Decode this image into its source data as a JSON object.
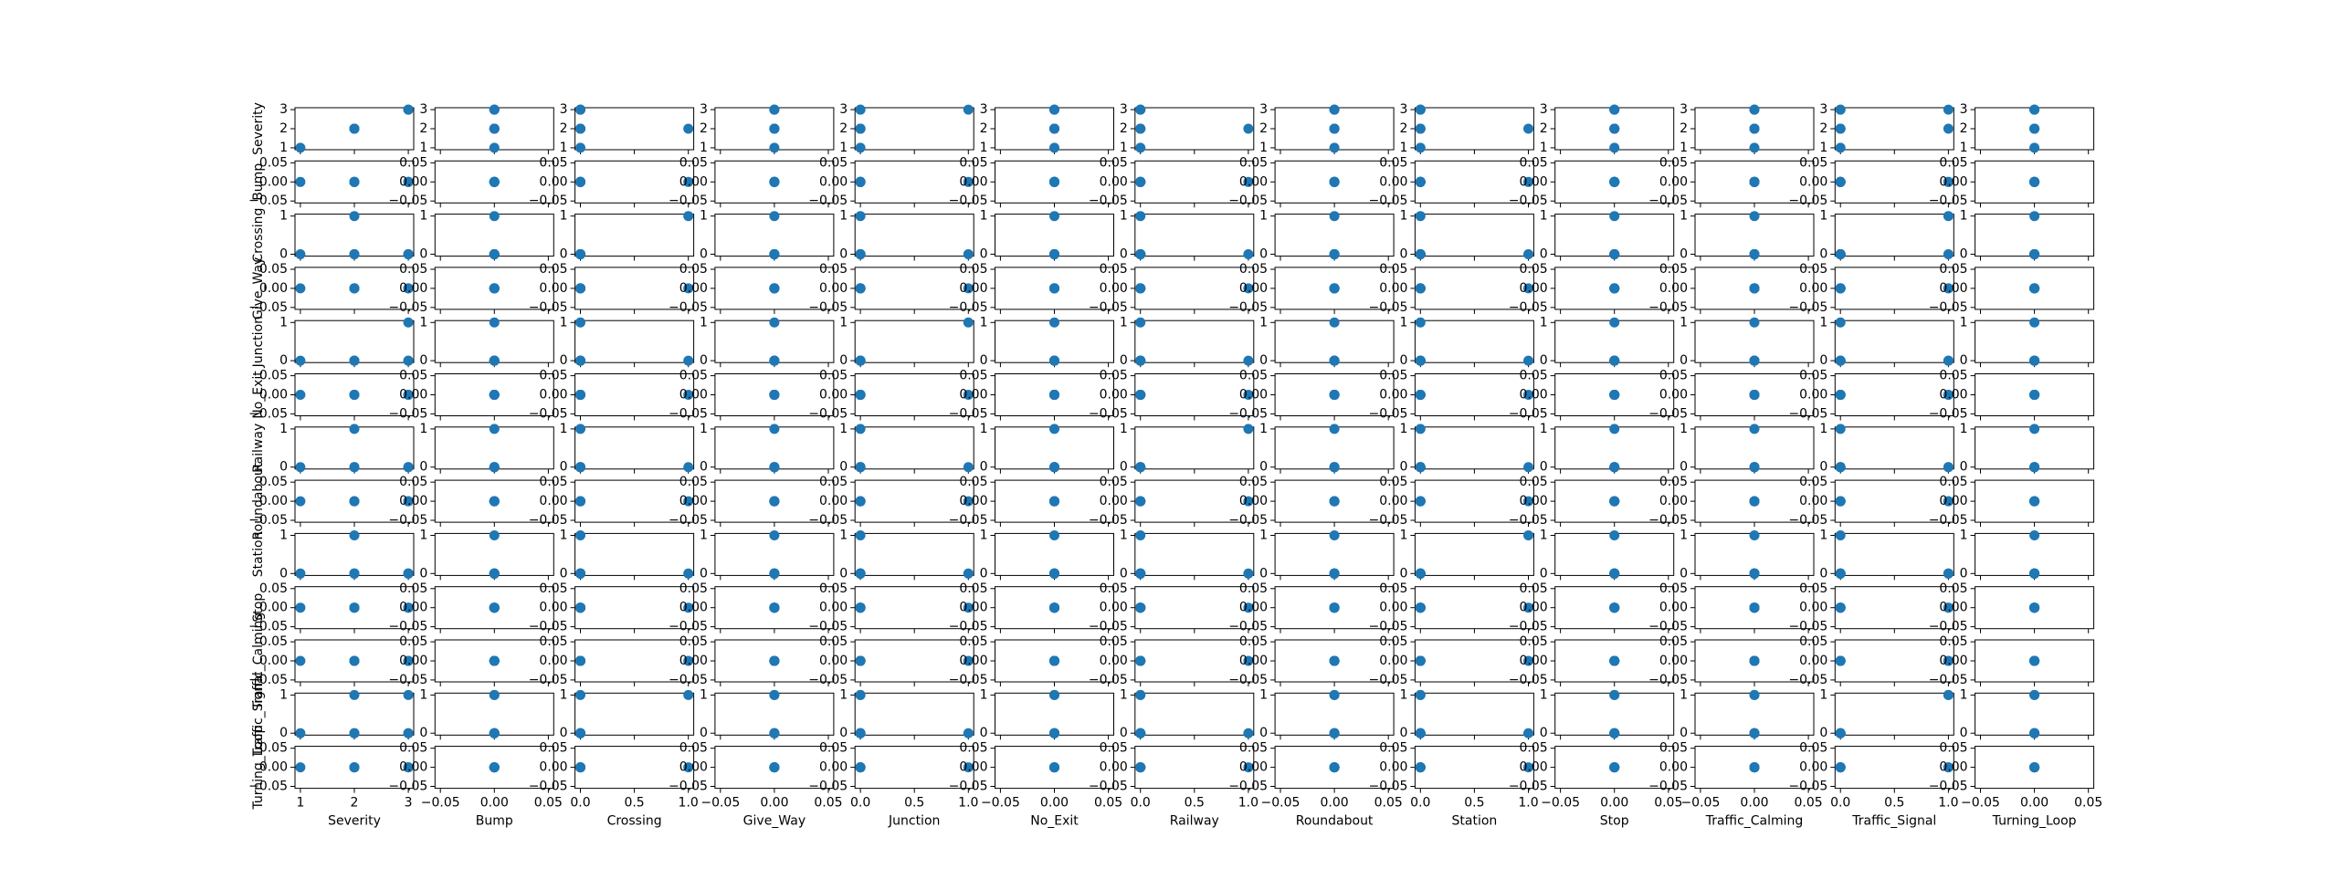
{
  "chart_data": {
    "type": "scatter_matrix",
    "color": "#1f77b4",
    "variables": [
      {
        "name": "Severity",
        "values": [
          1,
          2,
          3,
          2,
          3,
          2,
          2,
          3
        ],
        "lim": [
          0.9,
          3.1
        ],
        "yticks": [
          1,
          2,
          3
        ],
        "xticks": [
          1,
          2,
          3
        ]
      },
      {
        "name": "Bump",
        "values": [
          0,
          0,
          0,
          0,
          0,
          0,
          0,
          0
        ],
        "lim": [
          -0.055,
          0.055
        ],
        "yticks": [
          {
            "value": -0.05,
            "label": "−0.05"
          },
          {
            "value": 0,
            "label": "0.00"
          },
          {
            "value": 0.05,
            "label": "0.05"
          }
        ],
        "xticks": [
          {
            "value": -0.05,
            "label": "−0.05"
          },
          {
            "value": 0,
            "label": "0.00"
          },
          {
            "value": 0.05,
            "label": "0.05"
          }
        ]
      },
      {
        "name": "Crossing",
        "values": [
          0,
          0,
          0,
          1,
          0,
          0,
          0,
          0
        ],
        "lim": [
          -0.05,
          1.05
        ],
        "yticks": [
          0,
          1
        ],
        "xticks": [
          {
            "value": 0,
            "label": "0.0"
          },
          {
            "value": 0.5,
            "label": "0.5"
          },
          {
            "value": 1,
            "label": "1.0"
          }
        ]
      },
      {
        "name": "Give_Way",
        "values": [
          0,
          0,
          0,
          0,
          0,
          0,
          0,
          0
        ],
        "lim": [
          -0.055,
          0.055
        ],
        "yticks": [
          {
            "value": -0.05,
            "label": "−0.05"
          },
          {
            "value": 0,
            "label": "0.00"
          },
          {
            "value": 0.05,
            "label": "0.05"
          }
        ],
        "xticks": [
          {
            "value": -0.05,
            "label": "−0.05"
          },
          {
            "value": 0,
            "label": "0.00"
          },
          {
            "value": 0.05,
            "label": "0.05"
          }
        ]
      },
      {
        "name": "Junction",
        "values": [
          0,
          0,
          0,
          0,
          1,
          0,
          0,
          0
        ],
        "lim": [
          -0.05,
          1.05
        ],
        "yticks": [
          0,
          1
        ],
        "xticks": [
          {
            "value": 0,
            "label": "0.0"
          },
          {
            "value": 0.5,
            "label": "0.5"
          },
          {
            "value": 1,
            "label": "1.0"
          }
        ]
      },
      {
        "name": "No_Exit",
        "values": [
          0,
          0,
          0,
          0,
          0,
          0,
          0,
          0
        ],
        "lim": [
          -0.055,
          0.055
        ],
        "yticks": [
          {
            "value": -0.05,
            "label": "−0.05"
          },
          {
            "value": 0,
            "label": "0.00"
          },
          {
            "value": 0.05,
            "label": "0.05"
          }
        ],
        "xticks": [
          {
            "value": -0.05,
            "label": "−0.05"
          },
          {
            "value": 0,
            "label": "0.00"
          },
          {
            "value": 0.05,
            "label": "0.05"
          }
        ]
      },
      {
        "name": "Railway",
        "values": [
          0,
          0,
          0,
          0,
          0,
          1,
          0,
          0
        ],
        "lim": [
          -0.05,
          1.05
        ],
        "yticks": [
          0,
          1
        ],
        "xticks": [
          {
            "value": 0,
            "label": "0.0"
          },
          {
            "value": 0.5,
            "label": "0.5"
          },
          {
            "value": 1,
            "label": "1.0"
          }
        ]
      },
      {
        "name": "Roundabout",
        "values": [
          0,
          0,
          0,
          0,
          0,
          0,
          0,
          0
        ],
        "lim": [
          -0.055,
          0.055
        ],
        "yticks": [
          {
            "value": -0.05,
            "label": "−0.05"
          },
          {
            "value": 0,
            "label": "0.00"
          },
          {
            "value": 0.05,
            "label": "0.05"
          }
        ],
        "xticks": [
          {
            "value": -0.05,
            "label": "−0.05"
          },
          {
            "value": 0,
            "label": "0.00"
          },
          {
            "value": 0.05,
            "label": "0.05"
          }
        ]
      },
      {
        "name": "Station",
        "values": [
          0,
          0,
          0,
          0,
          0,
          0,
          1,
          0
        ],
        "lim": [
          -0.05,
          1.05
        ],
        "yticks": [
          0,
          1
        ],
        "xticks": [
          {
            "value": 0,
            "label": "0.0"
          },
          {
            "value": 0.5,
            "label": "0.5"
          },
          {
            "value": 1,
            "label": "1.0"
          }
        ]
      },
      {
        "name": "Stop",
        "values": [
          0,
          0,
          0,
          0,
          0,
          0,
          0,
          0
        ],
        "lim": [
          -0.055,
          0.055
        ],
        "yticks": [
          {
            "value": -0.05,
            "label": "−0.05"
          },
          {
            "value": 0,
            "label": "0.00"
          },
          {
            "value": 0.05,
            "label": "0.05"
          }
        ],
        "xticks": [
          {
            "value": -0.05,
            "label": "−0.05"
          },
          {
            "value": 0,
            "label": "0.00"
          },
          {
            "value": 0.05,
            "label": "0.05"
          }
        ]
      },
      {
        "name": "Traffic_Calming",
        "values": [
          0,
          0,
          0,
          0,
          0,
          0,
          0,
          0
        ],
        "lim": [
          -0.055,
          0.055
        ],
        "yticks": [
          {
            "value": -0.05,
            "label": "−0.05"
          },
          {
            "value": 0,
            "label": "0.00"
          },
          {
            "value": 0.05,
            "label": "0.05"
          }
        ],
        "xticks": [
          {
            "value": -0.05,
            "label": "−0.05"
          },
          {
            "value": 0,
            "label": "0.00"
          },
          {
            "value": 0.05,
            "label": "0.05"
          }
        ]
      },
      {
        "name": "Traffic_Signal",
        "values": [
          0,
          0,
          0,
          1,
          0,
          0,
          0,
          1
        ],
        "lim": [
          -0.05,
          1.05
        ],
        "yticks": [
          0,
          1
        ],
        "xticks": [
          {
            "value": 0,
            "label": "0.0"
          },
          {
            "value": 0.5,
            "label": "0.5"
          },
          {
            "value": 1,
            "label": "1.0"
          }
        ]
      },
      {
        "name": "Turning_Loop",
        "values": [
          0,
          0,
          0,
          0,
          0,
          0,
          0,
          0
        ],
        "lim": [
          -0.055,
          0.055
        ],
        "yticks": [
          {
            "value": -0.05,
            "label": "−0.05"
          },
          {
            "value": 0,
            "label": "0.00"
          },
          {
            "value": 0.05,
            "label": "0.05"
          }
        ],
        "xticks": [
          {
            "value": -0.05,
            "label": "−0.05"
          },
          {
            "value": 0,
            "label": "0.00"
          },
          {
            "value": 0.05,
            "label": "0.05"
          }
        ]
      }
    ]
  }
}
